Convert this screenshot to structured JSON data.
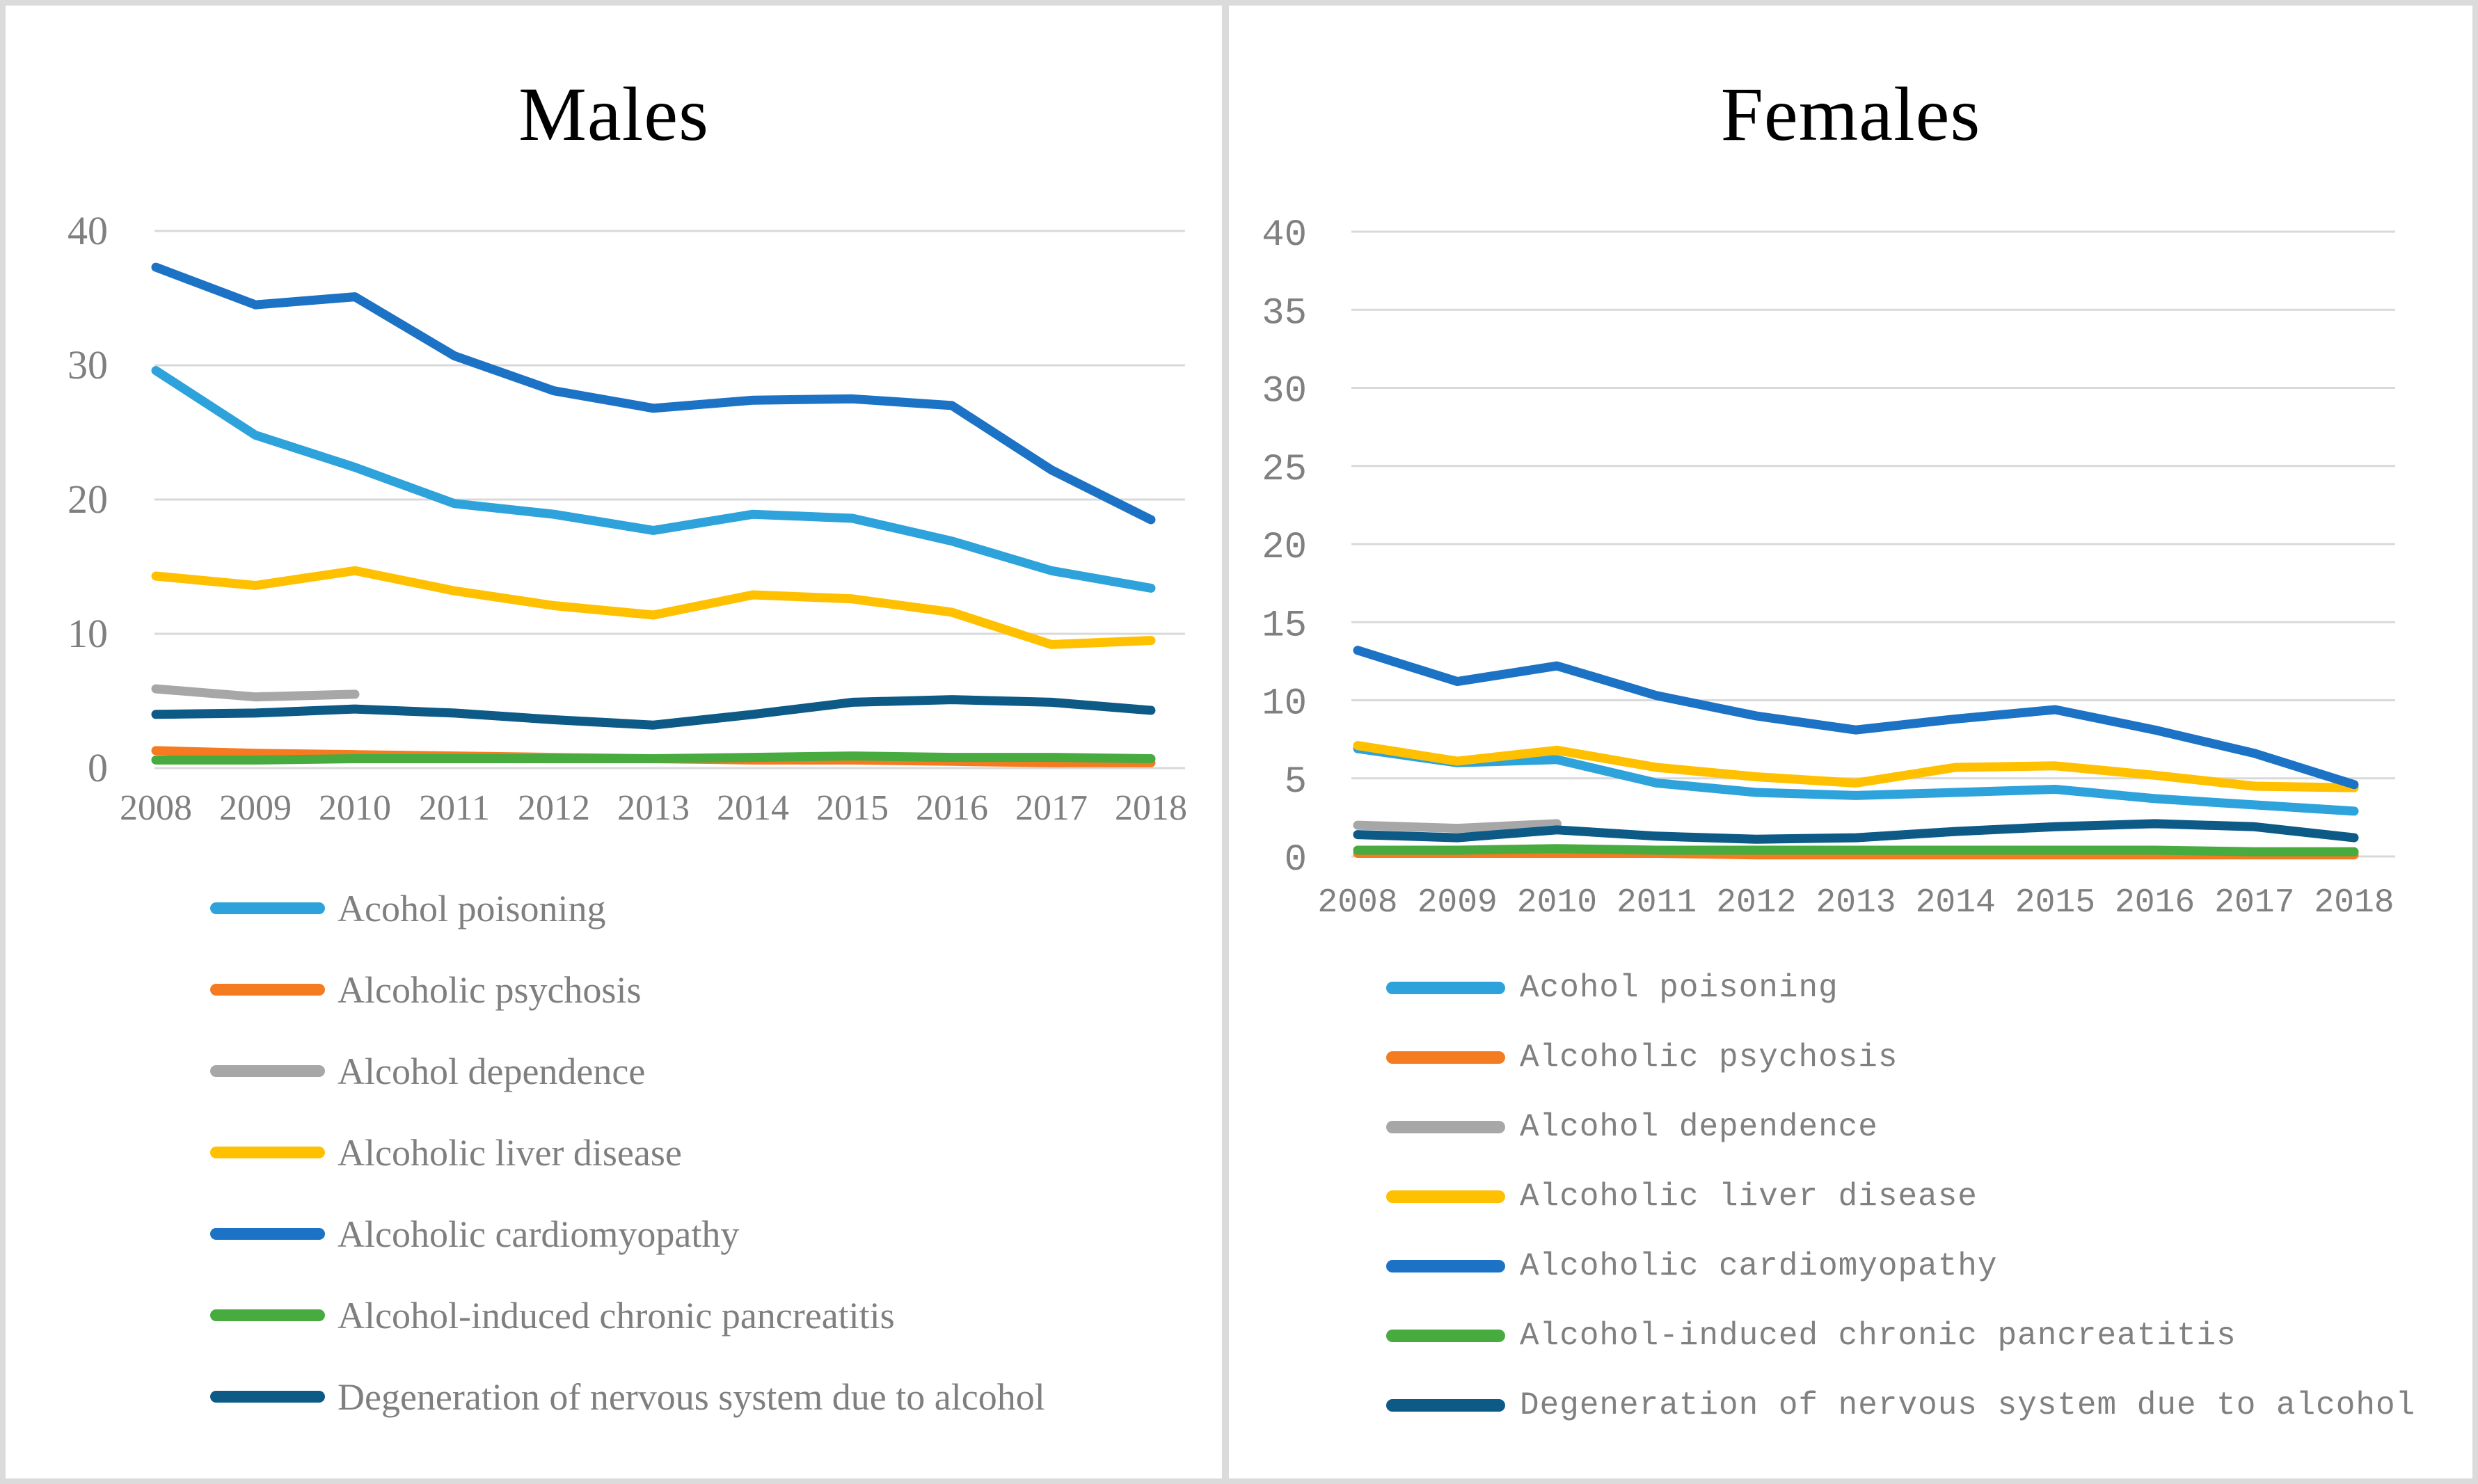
{
  "figure": {
    "border_color": "#DBDBDB",
    "gridline_color": "#D9D9D9",
    "axis_text_color": "#7F7F7F",
    "title_color": "#000000"
  },
  "chart_data": [
    {
      "type": "line",
      "title": "Males",
      "x": [
        2008,
        2009,
        2010,
        2011,
        2012,
        2013,
        2014,
        2015,
        2016,
        2017,
        2018
      ],
      "xlabel": "",
      "ylabel": "",
      "ylim": [
        0,
        40
      ],
      "yticks": [
        0,
        10,
        20,
        30,
        40
      ],
      "grid": true,
      "legend_position": "bottom-left",
      "series": [
        {
          "name": "Acohol poisoning",
          "color": "#2EA2DB",
          "values": [
            29.6,
            24.8,
            22.4,
            19.7,
            18.9,
            17.7,
            18.9,
            18.6,
            16.9,
            14.7,
            13.4
          ]
        },
        {
          "name": "Alcoholic psychosis",
          "color": "#F57B20",
          "values": [
            1.3,
            1.1,
            1.0,
            0.9,
            0.8,
            0.7,
            0.6,
            0.6,
            0.5,
            0.4,
            0.4
          ]
        },
        {
          "name": "Alcohol dependence",
          "color": "#A7A7A7",
          "values": [
            5.9,
            5.3,
            5.5,
            null,
            null,
            null,
            null,
            null,
            null,
            null,
            null
          ]
        },
        {
          "name": "Alcoholic liver disease",
          "color": "#FFC000",
          "values": [
            14.3,
            13.6,
            14.7,
            13.2,
            12.1,
            11.4,
            12.9,
            12.6,
            11.6,
            9.2,
            9.5
          ]
        },
        {
          "name": "Alcoholic cardiomyopathy",
          "color": "#1C72C4",
          "values": [
            37.3,
            34.5,
            35.1,
            30.7,
            28.1,
            26.8,
            27.4,
            27.5,
            27.0,
            22.2,
            18.5
          ]
        },
        {
          "name": "Alcohol-induced chronic pancreatitis",
          "color": "#47AB3F",
          "values": [
            0.6,
            0.6,
            0.7,
            0.7,
            0.7,
            0.7,
            0.8,
            0.9,
            0.8,
            0.8,
            0.7
          ]
        },
        {
          "name": "Degeneration of nervous system due to alcohol",
          "color": "#0D5A87",
          "values": [
            4.0,
            4.1,
            4.4,
            4.1,
            3.6,
            3.2,
            4.0,
            4.9,
            5.1,
            4.9,
            4.3
          ]
        }
      ]
    },
    {
      "type": "line",
      "title": "Females",
      "x": [
        2008,
        2009,
        2010,
        2011,
        2012,
        2013,
        2014,
        2015,
        2016,
        2017,
        2018
      ],
      "xlabel": "",
      "ylabel": "",
      "ylim": [
        0,
        40
      ],
      "yticks": [
        0,
        5,
        10,
        15,
        20,
        25,
        30,
        35,
        40
      ],
      "grid": true,
      "legend_position": "bottom-left",
      "series": [
        {
          "name": "Acohol poisoning",
          "color": "#2EA2DB",
          "values": [
            6.9,
            6.0,
            6.2,
            4.7,
            4.1,
            3.9,
            4.1,
            4.3,
            3.7,
            3.3,
            2.9
          ]
        },
        {
          "name": "Alcoholic psychosis",
          "color": "#F57B20",
          "values": [
            0.2,
            0.2,
            0.2,
            0.2,
            0.1,
            0.1,
            0.1,
            0.1,
            0.1,
            0.1,
            0.1
          ]
        },
        {
          "name": "Alcohol dependence",
          "color": "#A7A7A7",
          "values": [
            2.0,
            1.8,
            2.1,
            null,
            null,
            null,
            null,
            null,
            null,
            null,
            null
          ]
        },
        {
          "name": "Alcoholic liver disease",
          "color": "#FFC000",
          "values": [
            7.1,
            6.1,
            6.8,
            5.7,
            5.1,
            4.7,
            5.7,
            5.8,
            5.2,
            4.5,
            4.4
          ]
        },
        {
          "name": "Alcoholic cardiomyopathy",
          "color": "#1C72C4",
          "values": [
            13.2,
            11.2,
            12.2,
            10.3,
            9.0,
            8.1,
            8.8,
            9.4,
            8.1,
            6.6,
            4.6
          ]
        },
        {
          "name": "Alcohol-induced chronic pancreatitis",
          "color": "#47AB3F",
          "values": [
            0.4,
            0.4,
            0.5,
            0.4,
            0.4,
            0.4,
            0.4,
            0.4,
            0.4,
            0.3,
            0.3
          ]
        },
        {
          "name": "Degeneration of nervous system due to alcohol",
          "color": "#0D5A87",
          "values": [
            1.4,
            1.2,
            1.7,
            1.3,
            1.1,
            1.2,
            1.6,
            1.9,
            2.1,
            1.9,
            1.2
          ]
        }
      ]
    }
  ]
}
